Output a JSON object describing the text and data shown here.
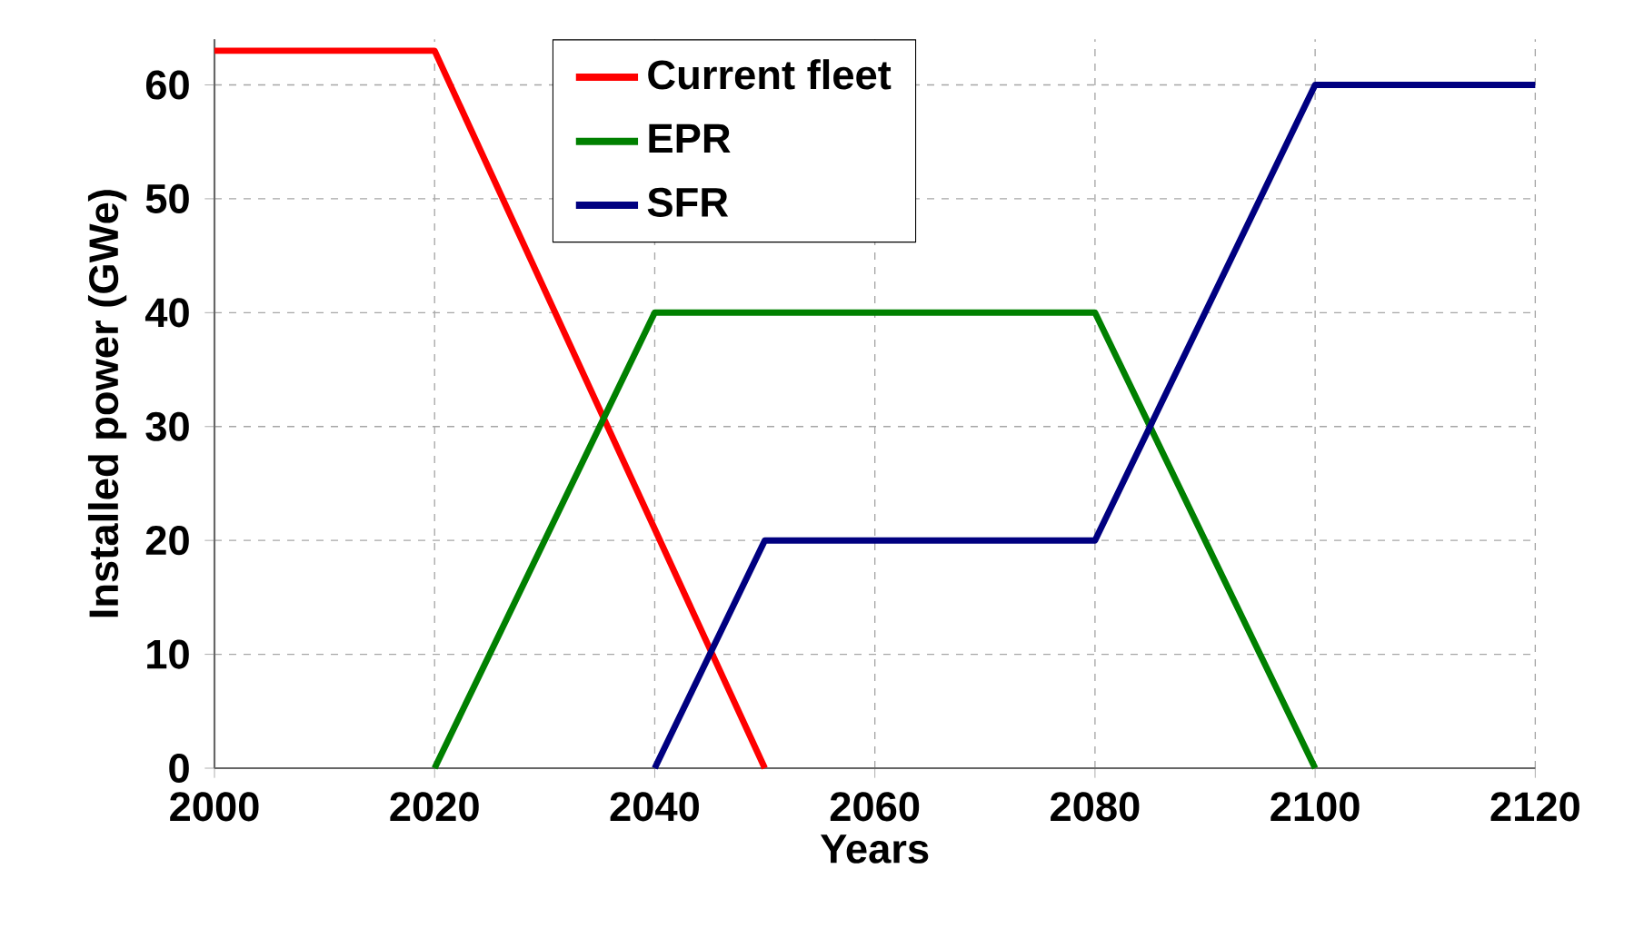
{
  "chart_data": {
    "type": "line",
    "xlabel": "Years",
    "ylabel": "Installed power (GWe)",
    "xlim": [
      2000,
      2120
    ],
    "ylim": [
      0,
      64
    ],
    "xticks": [
      2000,
      2020,
      2040,
      2060,
      2080,
      2100,
      2120
    ],
    "yticks": [
      0,
      10,
      20,
      30,
      40,
      50,
      60
    ],
    "grid": true,
    "legend": "top",
    "marker": "none",
    "line_style": "solid",
    "series": [
      {
        "name": "Current fleet",
        "color": "#ff0000",
        "x": [
          2000,
          2020,
          2050
        ],
        "values": [
          63,
          63,
          0
        ]
      },
      {
        "name": "EPR",
        "color": "#008000",
        "x": [
          2020,
          2040,
          2080,
          2100
        ],
        "values": [
          0,
          40,
          40,
          0
        ]
      },
      {
        "name": "SFR",
        "color": "#000080",
        "x": [
          2040,
          2050,
          2080,
          2100,
          2120
        ],
        "values": [
          0,
          20,
          20,
          60,
          60
        ]
      }
    ]
  }
}
